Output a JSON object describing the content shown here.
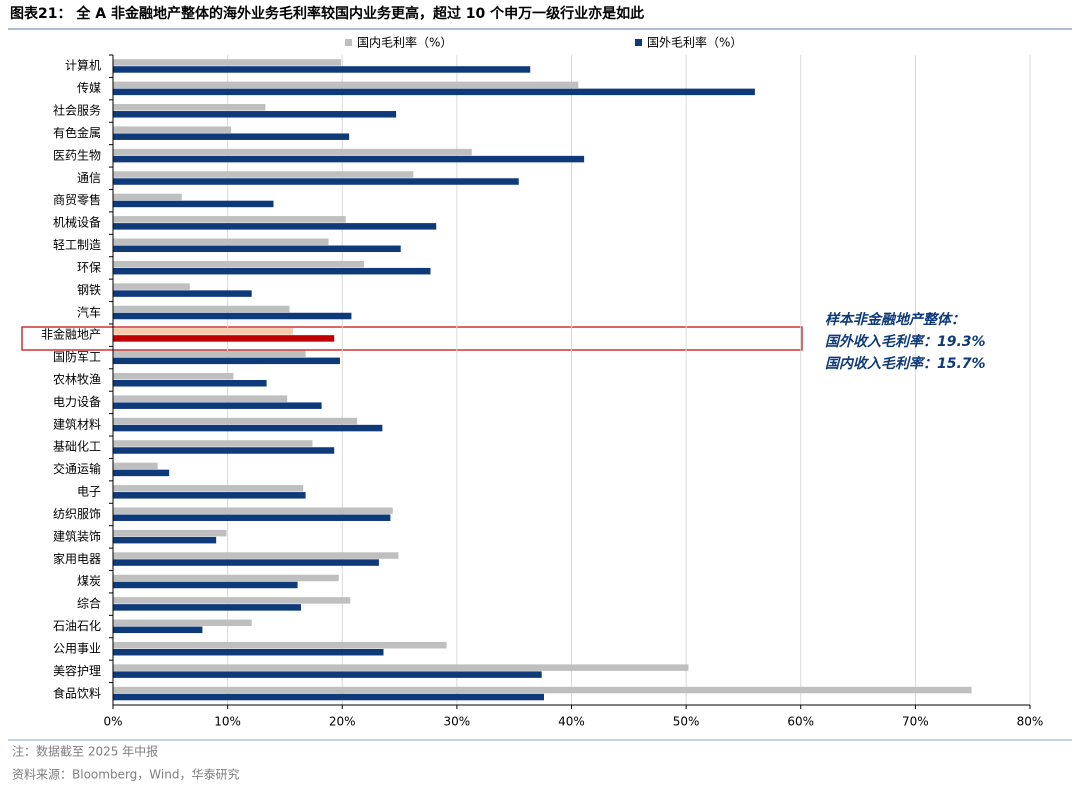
{
  "chart_data": {
    "type": "hbar",
    "title": "图表21：  全 A 非金融地产整体的海外业务毛利率较国内业务更高，超过 10 个申万一级行业亦是如此",
    "categories": [
      "计算机",
      "传媒",
      "社会服务",
      "有色金属",
      "医药生物",
      "通信",
      "商贸零售",
      "机械设备",
      "轻工制造",
      "环保",
      "钢铁",
      "汽车",
      "非金融地产",
      "国防军工",
      "农林牧渔",
      "电力设备",
      "建筑材料",
      "基础化工",
      "交通运输",
      "电子",
      "纺织服饰",
      "建筑装饰",
      "家用电器",
      "煤炭",
      "综合",
      "石油石化",
      "公用事业",
      "美容护理",
      "食品饮料"
    ],
    "series": [
      {
        "name": "国内毛利率（%）",
        "color": "#bfbfbf",
        "colors": [
          "#bfbfbf",
          "#bfbfbf",
          "#bfbfbf",
          "#bfbfbf",
          "#bfbfbf",
          "#bfbfbf",
          "#bfbfbf",
          "#bfbfbf",
          "#bfbfbf",
          "#bfbfbf",
          "#bfbfbf",
          "#bfbfbf",
          "#f8cbad",
          "#bfbfbf",
          "#bfbfbf",
          "#bfbfbf",
          "#bfbfbf",
          "#bfbfbf",
          "#bfbfbf",
          "#bfbfbf",
          "#bfbfbf",
          "#bfbfbf",
          "#bfbfbf",
          "#bfbfbf",
          "#bfbfbf",
          "#bfbfbf",
          "#bfbfbf",
          "#bfbfbf",
          "#bfbfbf"
        ],
        "values": [
          19.9,
          40.6,
          13.3,
          10.3,
          31.3,
          26.2,
          6.0,
          20.3,
          18.8,
          21.9,
          6.7,
          15.4,
          15.7,
          16.8,
          10.5,
          15.2,
          21.3,
          17.4,
          3.9,
          16.6,
          24.4,
          9.9,
          24.9,
          19.7,
          20.7,
          12.1,
          29.1,
          50.2,
          74.9
        ]
      },
      {
        "name": "国外毛利率（%）",
        "color": "#0e3a7a",
        "colors": [
          "#0e3a7a",
          "#0e3a7a",
          "#0e3a7a",
          "#0e3a7a",
          "#0e3a7a",
          "#0e3a7a",
          "#0e3a7a",
          "#0e3a7a",
          "#0e3a7a",
          "#0e3a7a",
          "#0e3a7a",
          "#0e3a7a",
          "#c00000",
          "#0e3a7a",
          "#0e3a7a",
          "#0e3a7a",
          "#0e3a7a",
          "#0e3a7a",
          "#0e3a7a",
          "#0e3a7a",
          "#0e3a7a",
          "#0e3a7a",
          "#0e3a7a",
          "#0e3a7a",
          "#0e3a7a",
          "#0e3a7a",
          "#0e3a7a",
          "#0e3a7a",
          "#0e3a7a"
        ],
        "values": [
          36.4,
          56.0,
          24.7,
          20.6,
          41.1,
          35.4,
          14.0,
          28.2,
          25.1,
          27.7,
          12.1,
          20.8,
          19.3,
          19.8,
          13.4,
          18.2,
          23.5,
          19.3,
          4.9,
          16.8,
          24.2,
          9.0,
          23.2,
          16.1,
          16.4,
          7.8,
          23.6,
          37.4,
          37.6
        ]
      }
    ],
    "xlim": [
      0,
      80
    ],
    "xticks": [
      {
        "value": 0,
        "label": "0%"
      },
      {
        "value": 10,
        "label": "10%"
      },
      {
        "value": 20,
        "label": "20%"
      },
      {
        "value": 30,
        "label": "30%"
      },
      {
        "value": 40,
        "label": "40%"
      },
      {
        "value": 50,
        "label": "50%"
      },
      {
        "value": 60,
        "label": "60%"
      },
      {
        "value": 70,
        "label": "70%"
      },
      {
        "value": 80,
        "label": "80%"
      }
    ],
    "grid": true,
    "annotations": [
      "样本非金融地产整体：",
      "国外收入毛利率：19.3%",
      "国内收入毛利率：15.7%"
    ],
    "notes": [
      "注：数据截至 2025 年中报",
      "资料来源：Bloomberg，Wind，华泰研究"
    ]
  }
}
